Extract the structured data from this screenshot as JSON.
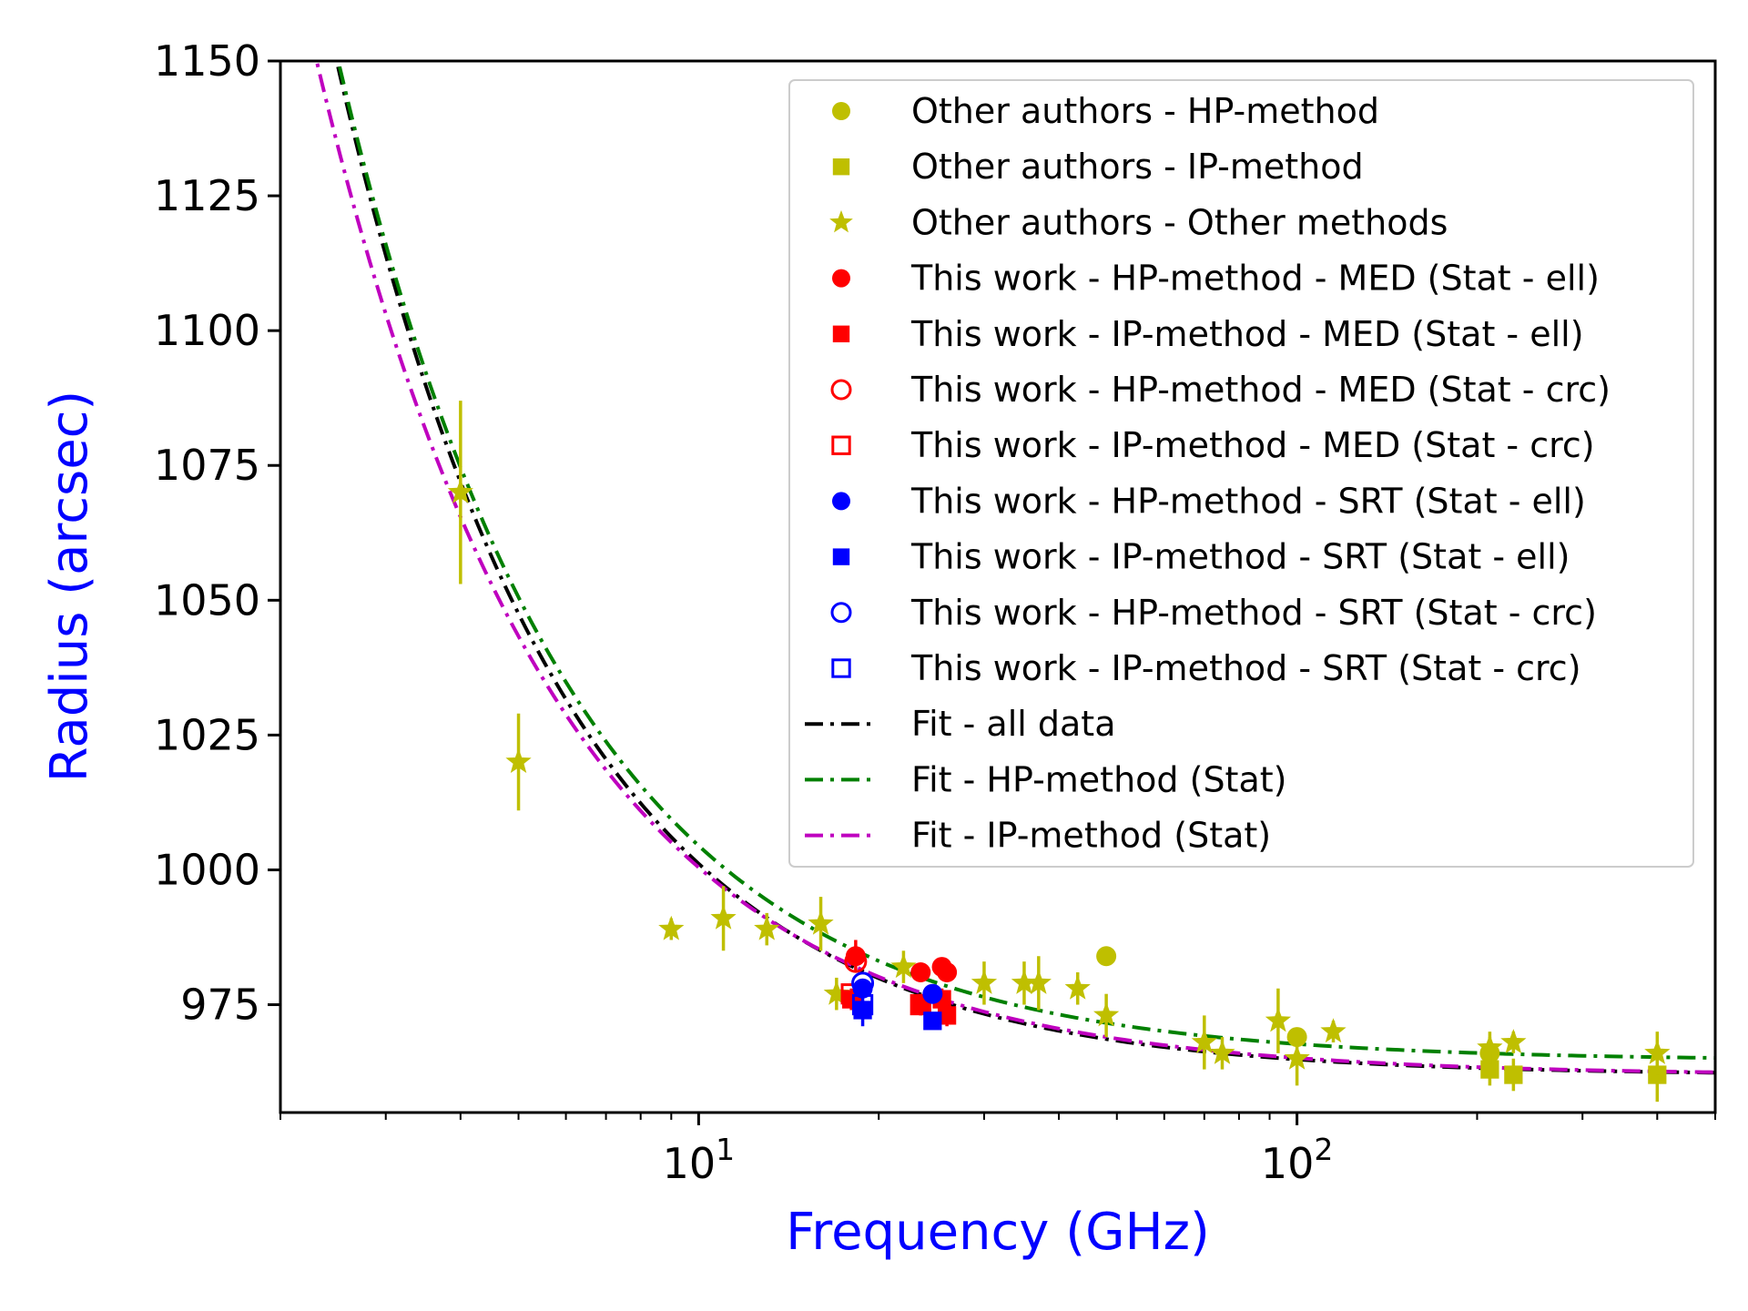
{
  "chart_data": {
    "type": "scatter",
    "title": "",
    "xlabel": "Frequency (GHz)",
    "ylabel": "Radius (arcsec)",
    "xscale": "log",
    "xlim": [
      2,
      500
    ],
    "ylim": [
      955,
      1150
    ],
    "yticks": [
      975,
      1000,
      1025,
      1050,
      1075,
      1100,
      1125,
      1150
    ],
    "xticks": [
      {
        "value": 10,
        "base": "10",
        "exp": "1"
      },
      {
        "value": 100,
        "base": "10",
        "exp": "2"
      }
    ],
    "colors": {
      "other": "#bfbf00",
      "med": "#ff0000",
      "srt": "#0000ff",
      "fit_all": "#000000",
      "fit_hp": "#008000",
      "fit_ip": "#bf00bf",
      "axis_label": "#0000ff"
    },
    "legend_position": "upper right",
    "series": [
      {
        "name": "Other authors - HP-method",
        "marker": "circle",
        "fill": true,
        "color_key": "other",
        "points": [
          [
            48,
            984,
            0
          ],
          [
            100,
            969,
            0
          ],
          [
            210,
            966,
            3
          ]
        ]
      },
      {
        "name": "Other authors - IP-method",
        "marker": "square",
        "fill": true,
        "color_key": "other",
        "points": [
          [
            210,
            963,
            3
          ],
          [
            230,
            962,
            3
          ],
          [
            400,
            962,
            5
          ]
        ]
      },
      {
        "name": "Other authors - Other methods",
        "marker": "star",
        "fill": true,
        "color_key": "other",
        "points": [
          [
            4,
            1070,
            17
          ],
          [
            5,
            1020,
            9
          ],
          [
            9,
            989,
            2
          ],
          [
            11,
            991,
            6
          ],
          [
            13,
            989,
            3
          ],
          [
            16,
            990,
            5
          ],
          [
            17,
            977,
            3
          ],
          [
            22,
            982,
            3
          ],
          [
            30,
            979,
            4
          ],
          [
            35,
            979,
            4
          ],
          [
            37,
            979,
            5
          ],
          [
            43,
            978,
            3
          ],
          [
            48,
            973,
            4
          ],
          [
            70,
            968,
            5
          ],
          [
            75,
            966,
            3
          ],
          [
            93,
            972,
            6
          ],
          [
            100,
            965,
            5
          ],
          [
            115,
            970,
            2
          ],
          [
            210,
            967,
            3
          ],
          [
            230,
            968,
            2
          ],
          [
            400,
            966,
            4
          ]
        ]
      },
      {
        "name": "This work - HP-method - MED (Stat - ell)",
        "marker": "circle",
        "fill": true,
        "color_key": "med",
        "points": [
          [
            18.3,
            984,
            3
          ],
          [
            23.5,
            981,
            0
          ],
          [
            25.5,
            982,
            0
          ],
          [
            26,
            981,
            0
          ]
        ]
      },
      {
        "name": "This work - IP-method - MED (Stat - ell)",
        "marker": "square",
        "fill": true,
        "color_key": "med",
        "points": [
          [
            18,
            976,
            2
          ],
          [
            23.5,
            975,
            2
          ],
          [
            25.5,
            976,
            2
          ],
          [
            26,
            973,
            2
          ]
        ]
      },
      {
        "name": "This work - HP-method - MED (Stat - crc)",
        "marker": "circle",
        "fill": false,
        "color_key": "med",
        "points": [
          [
            18.3,
            983,
            0
          ]
        ]
      },
      {
        "name": "This work - IP-method - MED (Stat - crc)",
        "marker": "square",
        "fill": false,
        "color_key": "med",
        "points": [
          [
            18,
            977,
            0
          ],
          [
            23.5,
            975,
            0
          ]
        ]
      },
      {
        "name": "This work - HP-method - SRT (Stat - ell)",
        "marker": "circle",
        "fill": true,
        "color_key": "srt",
        "points": [
          [
            18.8,
            978,
            0
          ],
          [
            24.6,
            977,
            0
          ]
        ]
      },
      {
        "name": "This work - IP-method - SRT (Stat - ell)",
        "marker": "square",
        "fill": true,
        "color_key": "srt",
        "points": [
          [
            18.8,
            974,
            3
          ],
          [
            24.6,
            972,
            0
          ]
        ]
      },
      {
        "name": "This work - HP-method - SRT (Stat - crc)",
        "marker": "circle",
        "fill": false,
        "color_key": "srt",
        "points": [
          [
            18.8,
            979,
            0
          ]
        ]
      },
      {
        "name": "This work - IP-method - SRT (Stat - crc)",
        "marker": "square",
        "fill": false,
        "color_key": "srt",
        "points": [
          [
            18.8,
            975,
            0
          ]
        ]
      }
    ],
    "fits": [
      {
        "name": "Fit - all data",
        "color_key": "fit_all",
        "model": "a + b * x^(-c)",
        "params": {
          "a": 961.9,
          "b": 523.4,
          "c": 1.125
        }
      },
      {
        "name": "Fit - HP-method (Stat)",
        "color_key": "fit_hp",
        "model": "a + b * x^(-c)",
        "params": {
          "a": 964.6,
          "b": 511.4,
          "c": 1.108
        }
      },
      {
        "name": "Fit - IP-method (Stat)",
        "color_key": "fit_ip",
        "model": "a + b * x^(-c)",
        "params": {
          "a": 961.9,
          "b": 461.5,
          "c": 1.078
        }
      }
    ]
  }
}
